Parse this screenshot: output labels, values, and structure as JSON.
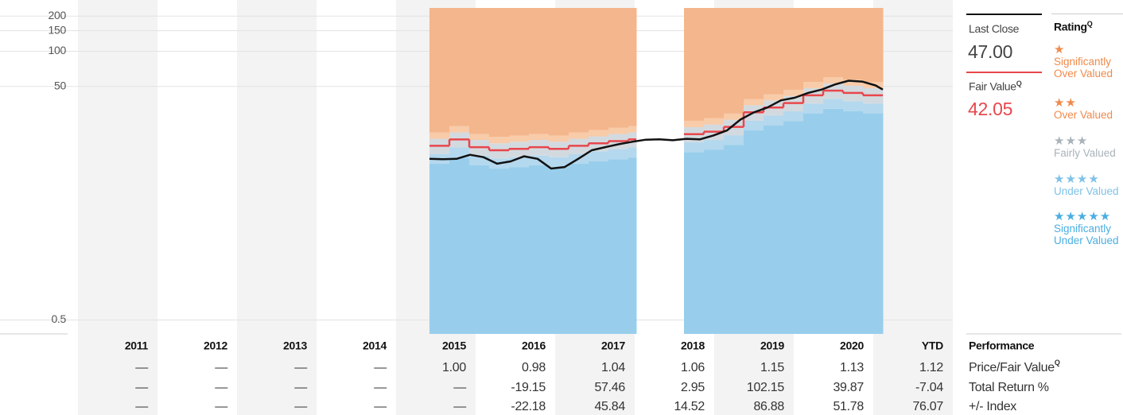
{
  "chart_data": {
    "type": "price-fair-value",
    "xlim": [
      2011,
      2022
    ],
    "ylim": [
      0.38,
      235
    ],
    "yticks": [
      0.5,
      50,
      100,
      150,
      200
    ],
    "log_scale": true,
    "grid": true,
    "price": {
      "color": "#111111",
      "x": [
        2015.42,
        2015.59,
        2015.76,
        2015.93,
        2016.1,
        2016.27,
        2016.44,
        2016.61,
        2016.78,
        2016.95,
        2017.12,
        2017.29,
        2017.46,
        2017.63,
        2017.8,
        2017.97,
        2018.14,
        2018.31,
        2018.48,
        2018.65,
        2018.82,
        2018.99,
        2019.16,
        2019.33,
        2019.5,
        2019.67,
        2019.84,
        2020.01,
        2020.18,
        2020.35,
        2020.52,
        2020.69,
        2020.86,
        2021.03,
        2021.12
      ],
      "values": [
        12.0,
        11.9,
        12.0,
        13.0,
        12.4,
        10.9,
        11.4,
        12.6,
        12.0,
        9.9,
        10.2,
        12.0,
        14.2,
        15.1,
        16.0,
        16.8,
        17.5,
        17.6,
        17.3,
        17.8,
        17.6,
        19.0,
        21,
        26,
        30,
        33,
        38,
        40,
        44,
        47,
        52,
        56,
        55,
        51,
        47
      ]
    },
    "fair_value": {
      "color": "#e8474c",
      "x": [
        2015.42,
        2015.67,
        2015.92,
        2016.17,
        2016.42,
        2016.67,
        2016.92,
        2017.17,
        2017.42,
        2017.67,
        2017.92,
        2018.02,
        2018.62,
        2018.87,
        2019.12,
        2019.37,
        2019.62,
        2019.87,
        2020.12,
        2020.37,
        2020.62,
        2020.87,
        2021.12
      ],
      "values": [
        15.5,
        17.6,
        15.1,
        14.2,
        14.6,
        15.1,
        14.6,
        15.5,
        16.3,
        17.0,
        17.6,
        null,
        19.5,
        20.5,
        22.5,
        30,
        33,
        36,
        42,
        46,
        44,
        42,
        null
      ]
    },
    "bands": [
      {
        "stars": "★",
        "name": "Significantly Over Valued",
        "color": "#f4b68c",
        "text_color": "#f08a4b"
      },
      {
        "stars": "★★",
        "name": "Over Valued",
        "color": "#f8cba9",
        "text_color": "#f08a4b",
        "upper": [
          20.2,
          22.9,
          19.6,
          18.5,
          19.0,
          19.6,
          19.0,
          20.2,
          21.2,
          22.1,
          22.9,
          null,
          25.4,
          26.7,
          29.3,
          39.0,
          42.9,
          46.8,
          54.6,
          59.8,
          57.2,
          54.6,
          null
        ]
      },
      {
        "stars": "★★★",
        "name": "Fairly Valued",
        "color": "#d3dadf",
        "text_color": "#a9b3ba",
        "upper": [
          17.8,
          20.2,
          17.4,
          16.3,
          16.8,
          17.4,
          16.8,
          17.8,
          18.7,
          19.6,
          20.2,
          null,
          22.4,
          23.6,
          25.9,
          34.5,
          38.0,
          41.4,
          48.3,
          52.9,
          50.6,
          48.3,
          null
        ]
      },
      {
        "stars": "★★★★",
        "name": "Under Valued",
        "color": "#b4d8ee",
        "text_color": "#7fc2e8",
        "upper": [
          13.2,
          15.0,
          12.8,
          12.1,
          12.4,
          12.8,
          12.4,
          13.2,
          13.9,
          14.5,
          15.0,
          null,
          16.6,
          17.4,
          19.1,
          25.5,
          28.1,
          30.6,
          35.7,
          39.1,
          37.4,
          35.7,
          null
        ]
      },
      {
        "stars": "★★★★★",
        "name": "Significantly Under Valued",
        "color": "#98ceec",
        "text_color": "#4aaee2",
        "upper": [
          10.9,
          12.3,
          10.6,
          9.9,
          10.2,
          10.6,
          10.2,
          10.9,
          11.4,
          11.9,
          12.3,
          null,
          13.7,
          14.4,
          15.8,
          21.0,
          23.1,
          25.2,
          29.4,
          32.2,
          30.8,
          29.4,
          null
        ]
      }
    ]
  },
  "summary": {
    "last_close_label": "Last Close",
    "last_close": "47.00",
    "fair_value_label": "Fair Value",
    "fair_value": "42.05",
    "quant_mark": "Q",
    "rating_title": "Rating"
  },
  "table": {
    "title": "Performance",
    "columns": [
      "2011",
      "2012",
      "2013",
      "2014",
      "2015",
      "2016",
      "2017",
      "2018",
      "2019",
      "2020",
      "YTD"
    ],
    "rows": [
      {
        "label": "Price/Fair Value",
        "values": [
          "—",
          "—",
          "—",
          "—",
          "1.00",
          "0.98",
          "1.04",
          "1.06",
          "1.15",
          "1.13",
          "1.12"
        ]
      },
      {
        "label": "Total Return %",
        "values": [
          "—",
          "—",
          "—",
          "—",
          "—",
          "-19.15",
          "57.46",
          "2.95",
          "102.15",
          "39.87",
          "-7.04"
        ]
      },
      {
        "label": "+/- Index",
        "values": [
          "—",
          "—",
          "—",
          "—",
          "—",
          "-22.18",
          "45.84",
          "14.52",
          "86.88",
          "51.78",
          "76.07"
        ]
      }
    ]
  }
}
